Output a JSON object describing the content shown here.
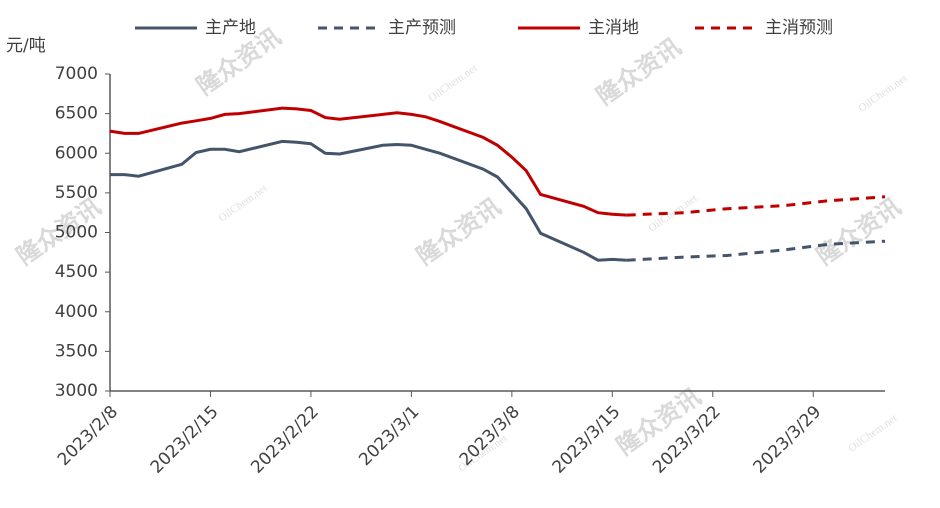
{
  "chart_data": {
    "type": "line",
    "y_label": "元/吨",
    "x": [
      "2023/2/8",
      "2023/2/9",
      "2023/2/10",
      "2023/2/13",
      "2023/2/14",
      "2023/2/15",
      "2023/2/16",
      "2023/2/17",
      "2023/2/20",
      "2023/2/21",
      "2023/2/22",
      "2023/2/23",
      "2023/2/24",
      "2023/2/27",
      "2023/2/28",
      "2023/3/1",
      "2023/3/2",
      "2023/3/3",
      "2023/3/6",
      "2023/3/7",
      "2023/3/8",
      "2023/3/9",
      "2023/3/10",
      "2023/3/13",
      "2023/3/14",
      "2023/3/15",
      "2023/3/16",
      "2023/3/20",
      "2023/3/23",
      "2023/3/27",
      "2023/3/30",
      "2023/4/3"
    ],
    "series": [
      {
        "name": "主产地",
        "color": "#44546a",
        "dashed": false,
        "values": [
          5730,
          5730,
          5710,
          5860,
          6010,
          6050,
          6050,
          6020,
          6150,
          6140,
          6120,
          6000,
          5990,
          6100,
          6110,
          6100,
          6050,
          6000,
          5800,
          5700,
          5500,
          5300,
          4990,
          4750,
          4650,
          4660,
          4650,
          null,
          null,
          null,
          null,
          null
        ]
      },
      {
        "name": "主产预测",
        "color": "#44546a",
        "dashed": true,
        "values": [
          null,
          null,
          null,
          null,
          null,
          null,
          null,
          null,
          null,
          null,
          null,
          null,
          null,
          null,
          null,
          null,
          null,
          null,
          null,
          null,
          null,
          null,
          null,
          null,
          null,
          null,
          4650,
          4690,
          4710,
          4780,
          4850,
          4890
        ]
      },
      {
        "name": "主消地",
        "color": "#c00000",
        "dashed": false,
        "values": [
          6280,
          6250,
          6250,
          6380,
          6410,
          6440,
          6490,
          6500,
          6570,
          6560,
          6540,
          6450,
          6430,
          6490,
          6510,
          6490,
          6460,
          6400,
          6200,
          6100,
          5950,
          5780,
          5480,
          5330,
          5250,
          5230,
          5220,
          null,
          null,
          null,
          null,
          null
        ]
      },
      {
        "name": "主消预测",
        "color": "#c00000",
        "dashed": true,
        "values": [
          null,
          null,
          null,
          null,
          null,
          null,
          null,
          null,
          null,
          null,
          null,
          null,
          null,
          null,
          null,
          null,
          null,
          null,
          null,
          null,
          null,
          null,
          null,
          null,
          null,
          null,
          5220,
          5250,
          5300,
          5340,
          5400,
          5450
        ]
      }
    ],
    "xlim": [
      "2023/2/8",
      "2023/4/3"
    ],
    "xticks": [
      "2023/2/8",
      "2023/2/15",
      "2023/2/22",
      "2023/3/1",
      "2023/3/8",
      "2023/3/15",
      "2023/3/22",
      "2023/3/29"
    ],
    "ylim": [
      3000,
      7000
    ],
    "yticks": [
      3000,
      3500,
      4000,
      4500,
      5000,
      5500,
      6000,
      6500,
      7000
    ],
    "grid": false,
    "legend": "top",
    "watermarks": [
      "隆众资讯",
      "OilChem.net"
    ]
  }
}
